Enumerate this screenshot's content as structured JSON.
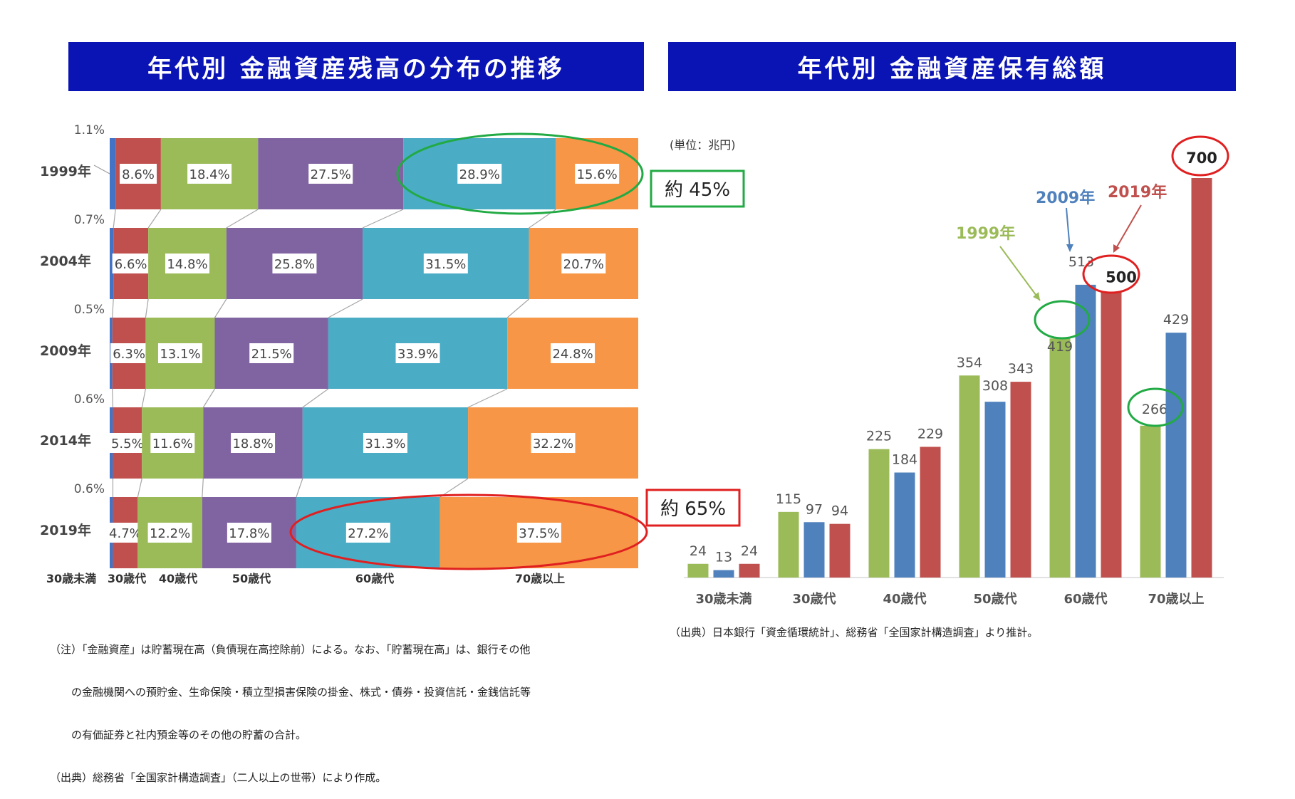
{
  "left_title": "年代別 金融資産残高の分布の推移",
  "right_title": "年代別 金融資産保有総額",
  "notes": {
    "left_lines": [
      "（注）「金融資産」は貯蓄現在高（負債現在高控除前）による。なお、「貯蓄現在高」は、銀行その他",
      "　　の金融機関への預貯金、生命保険・積立型損害保険の掛金、株式・債券・投資信託・金銭信託等",
      "　　の有価証券と社内預金等のその他の貯蓄の合計。",
      "（出典）総務省「全国家計構造調査」（二人以上の世帯）により作成。"
    ],
    "right_source": "（出典）日本銀行「資金循環統計」、総務省「全国家計構造調査」より推計。"
  },
  "colors": {
    "under30": "#4472c4",
    "age30": "#c0504d",
    "age40": "#9bbb59",
    "age50": "#8064a2",
    "age60": "#4bacc6",
    "age70": "#f79646",
    "green_circle": "#22aa44",
    "red_circle": "#e02020",
    "y1999": "#9bbb59",
    "y2009": "#4f81bd",
    "y2019": "#c0504d"
  },
  "chart_data": [
    {
      "type": "bar",
      "stacked": "100%",
      "orientation": "horizontal",
      "title": "年代別 金融資産残高の分布の推移",
      "categories": [
        "1999年",
        "2004年",
        "2009年",
        "2014年",
        "2019年"
      ],
      "series_labels": [
        "30歳未満",
        "30歳代",
        "40歳代",
        "50歳代",
        "60歳代",
        "70歳以上"
      ],
      "series": [
        {
          "name": "30歳未満",
          "values": [
            1.1,
            0.7,
            0.5,
            0.6,
            0.6
          ],
          "labels": [
            "1.1%",
            "0.7%",
            "0.5%",
            "0.6%",
            "0.6%"
          ]
        },
        {
          "name": "30歳代",
          "values": [
            8.6,
            6.6,
            6.3,
            5.5,
            4.7
          ],
          "labels": [
            "8.6%",
            "6.6%",
            "6.3%",
            "5.5%",
            "4.7%"
          ]
        },
        {
          "name": "40歳代",
          "values": [
            18.4,
            14.8,
            13.1,
            11.6,
            12.2
          ],
          "labels": [
            "18.4%",
            "14.8%",
            "13.1%",
            "11.6%",
            "12.2%"
          ]
        },
        {
          "name": "50歳代",
          "values": [
            27.5,
            25.8,
            21.5,
            18.8,
            17.8
          ],
          "labels": [
            "27.5%",
            "25.8%",
            "21.5%",
            "18.8%",
            "17.8%"
          ]
        },
        {
          "name": "60歳代",
          "values": [
            28.9,
            31.5,
            33.9,
            31.3,
            27.2
          ],
          "labels": [
            "28.9%",
            "31.5%",
            "33.9%",
            "31.3%",
            "27.2%"
          ]
        },
        {
          "name": "70歳以上",
          "values": [
            15.6,
            20.7,
            24.8,
            32.2,
            37.5
          ],
          "labels": [
            "15.6%",
            "20.7%",
            "24.8%",
            "32.2%",
            "37.5%"
          ]
        }
      ],
      "annotations": [
        "約 45%",
        "約 65%"
      ]
    },
    {
      "type": "bar",
      "title": "年代別 金融資産保有総額",
      "unit": "(単位：兆円)",
      "categories": [
        "30歳未満",
        "30歳代",
        "40歳代",
        "50歳代",
        "60歳代",
        "70歳以上"
      ],
      "series": [
        {
          "name": "1999年",
          "values": [
            24,
            115,
            225,
            354,
            419,
            266
          ],
          "labels": [
            "24",
            "115",
            "225",
            "354",
            "419",
            "266"
          ]
        },
        {
          "name": "2009年",
          "values": [
            13,
            97,
            184,
            308,
            513,
            429
          ],
          "labels": [
            "13",
            "97",
            "184",
            "308",
            "513",
            "429"
          ]
        },
        {
          "name": "2019年",
          "values": [
            24,
            94,
            229,
            343,
            500,
            700
          ],
          "labels": [
            "24",
            "94",
            "229",
            "343",
            "500",
            "700"
          ]
        }
      ],
      "ylim": [
        0,
        700
      ]
    }
  ]
}
